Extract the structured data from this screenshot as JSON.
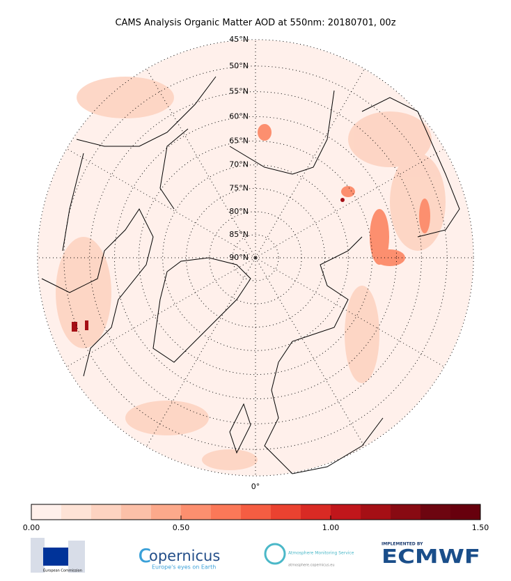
{
  "title": "CAMS Analysis Organic Matter AOD at 550nm: 20180701, 00z",
  "map": {
    "latitudes": [
      {
        "value": 45,
        "label": "45°N"
      },
      {
        "value": 50,
        "label": "50°N"
      },
      {
        "value": 55,
        "label": "55°N"
      },
      {
        "value": 60,
        "label": "60°N"
      },
      {
        "value": 65,
        "label": "65°N"
      },
      {
        "value": 70,
        "label": "70°N"
      },
      {
        "value": 75,
        "label": "75°N"
      },
      {
        "value": 80,
        "label": "80°N"
      },
      {
        "value": 85,
        "label": "85°N"
      },
      {
        "value": 90,
        "label": "90°N"
      }
    ],
    "meridian_label": "0°"
  },
  "colorbar": {
    "colors": [
      "#fff0eb",
      "#fee3d6",
      "#fdd3c1",
      "#fcc0a8",
      "#fca98b",
      "#fc8f6f",
      "#fb7858",
      "#f55d42",
      "#ea4230",
      "#d92a24",
      "#c1161b",
      "#a50f15",
      "#880a12",
      "#6d0510",
      "#67000d"
    ],
    "lim": [
      0,
      1.5
    ],
    "ticks": [
      {
        "value": 0,
        "label": "0.00"
      },
      {
        "value": 0.5,
        "label": "0.50"
      },
      {
        "value": 1,
        "label": "1.00"
      },
      {
        "value": 1.5,
        "label": "1.50"
      }
    ]
  },
  "logos": {
    "ec": "European Commission",
    "copernicus": "opernicus",
    "copernicus_tagline": "Europe's eyes on Earth",
    "cams": "Atmosphere Monitoring Service",
    "cams_url": "atmosphere.copernicus.eu",
    "ecmwf_top": "IMPLEMENTED BY",
    "ecmwf": "ECMWF"
  }
}
